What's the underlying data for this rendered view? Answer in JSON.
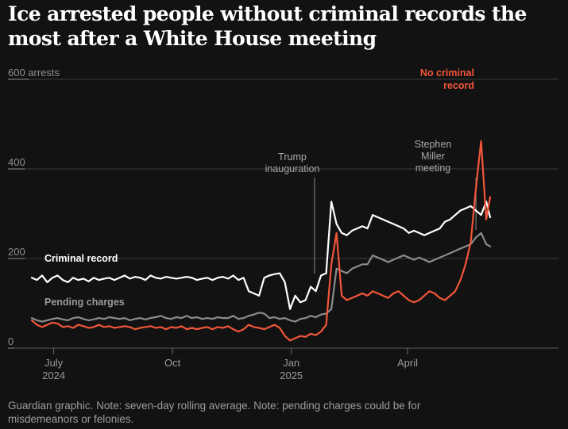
{
  "title": "Ice arrested people without criminal records the most after a White House meeting",
  "footer": "Guardian graphic. Note: seven-day rolling average. Note: pending charges could be for misdemeanors or felonies.",
  "colors": {
    "background": "#121212",
    "criminal_record": "#ffffff",
    "pending_charges": "#8c8c8c",
    "no_criminal_record": "#f2563a",
    "gridline": "#3a3a3a",
    "annotation": "#a8a8a8"
  },
  "chart_data": {
    "type": "line",
    "title": "Ice arrested people without criminal records the most after a White House meeting",
    "ylabel": "arrests",
    "ylim": [
      0,
      600
    ],
    "yticks": [
      {
        "value": 0,
        "label": "0"
      },
      {
        "value": 200,
        "label": "200"
      },
      {
        "value": 400,
        "label": "400"
      },
      {
        "value": 600,
        "label": "600"
      }
    ],
    "y_unit_label": "arrests",
    "xlim": [
      0,
      355
    ],
    "xticks": [
      {
        "x": 17,
        "label": "July",
        "sublabel": "2024"
      },
      {
        "x": 109,
        "label": "Oct",
        "sublabel": ""
      },
      {
        "x": 201,
        "label": "Jan",
        "sublabel": "2025"
      },
      {
        "x": 291,
        "label": "April",
        "sublabel": ""
      }
    ],
    "x_unit": "days since 2024-06-14",
    "grid": true,
    "annotations": [
      {
        "id": "trump",
        "x": 219,
        "lines": [
          "Trump",
          "inauguration"
        ]
      },
      {
        "id": "miller",
        "x": 344,
        "lines": [
          "Stephen",
          "Miller",
          "meeting"
        ]
      }
    ],
    "series": [
      {
        "name": "Criminal record",
        "label": "Criminal record",
        "color": "#ffffff",
        "x": [
          0,
          4,
          8,
          12,
          16,
          20,
          24,
          28,
          32,
          36,
          40,
          44,
          48,
          52,
          56,
          60,
          64,
          68,
          72,
          76,
          80,
          84,
          88,
          92,
          96,
          100,
          104,
          108,
          112,
          116,
          120,
          124,
          128,
          132,
          136,
          140,
          144,
          148,
          152,
          156,
          160,
          164,
          168,
          172,
          176,
          180,
          184,
          188,
          192,
          196,
          200,
          204,
          208,
          212,
          216,
          220,
          224,
          228,
          232,
          236,
          240,
          244,
          248,
          252,
          256,
          260,
          264,
          268,
          272,
          276,
          280,
          284,
          288,
          292,
          296,
          300,
          304,
          308,
          312,
          316,
          320,
          324,
          328,
          332,
          336,
          340,
          344,
          348,
          352,
          355
        ],
        "values": [
          150,
          145,
          155,
          140,
          150,
          155,
          145,
          140,
          150,
          145,
          148,
          142,
          150,
          145,
          148,
          150,
          145,
          150,
          155,
          148,
          152,
          150,
          145,
          155,
          150,
          148,
          152,
          150,
          148,
          150,
          152,
          150,
          145,
          148,
          150,
          145,
          150,
          152,
          148,
          155,
          145,
          150,
          120,
          115,
          110,
          150,
          155,
          158,
          160,
          140,
          80,
          110,
          95,
          100,
          130,
          120,
          155,
          160,
          320,
          270,
          250,
          245,
          255,
          260,
          265,
          260,
          290,
          285,
          280,
          275,
          270,
          265,
          260,
          250,
          255,
          250,
          245,
          250,
          255,
          260,
          275,
          280,
          290,
          300,
          305,
          310,
          300,
          290,
          320,
          285
        ]
      },
      {
        "name": "Pending charges",
        "label": "Pending charges",
        "color": "#8c8c8c",
        "x": [
          0,
          4,
          8,
          12,
          16,
          20,
          24,
          28,
          32,
          36,
          40,
          44,
          48,
          52,
          56,
          60,
          64,
          68,
          72,
          76,
          80,
          84,
          88,
          92,
          96,
          100,
          104,
          108,
          112,
          116,
          120,
          124,
          128,
          132,
          136,
          140,
          144,
          148,
          152,
          156,
          160,
          164,
          168,
          172,
          176,
          180,
          184,
          188,
          192,
          196,
          200,
          204,
          208,
          212,
          216,
          220,
          224,
          228,
          232,
          236,
          240,
          244,
          248,
          252,
          256,
          260,
          264,
          268,
          272,
          276,
          280,
          284,
          288,
          292,
          296,
          300,
          304,
          308,
          312,
          316,
          320,
          324,
          328,
          332,
          336,
          340,
          344,
          348,
          352,
          355
        ],
        "values": [
          60,
          55,
          52,
          55,
          58,
          60,
          57,
          55,
          60,
          62,
          58,
          55,
          57,
          60,
          58,
          62,
          60,
          58,
          60,
          55,
          58,
          60,
          57,
          60,
          62,
          65,
          60,
          58,
          62,
          60,
          65,
          60,
          62,
          58,
          60,
          58,
          62,
          60,
          60,
          65,
          58,
          60,
          65,
          68,
          72,
          70,
          60,
          62,
          58,
          60,
          55,
          52,
          58,
          60,
          65,
          62,
          68,
          70,
          80,
          170,
          165,
          160,
          170,
          175,
          180,
          180,
          200,
          195,
          190,
          185,
          190,
          195,
          200,
          195,
          190,
          195,
          190,
          185,
          190,
          195,
          200,
          205,
          210,
          215,
          220,
          225,
          240,
          250,
          225,
          220
        ]
      },
      {
        "name": "No criminal record",
        "label": "No criminal record",
        "color": "#f2563a",
        "x": [
          0,
          4,
          8,
          12,
          16,
          20,
          24,
          28,
          32,
          36,
          40,
          44,
          48,
          52,
          56,
          60,
          64,
          68,
          72,
          76,
          80,
          84,
          88,
          92,
          96,
          100,
          104,
          108,
          112,
          116,
          120,
          124,
          128,
          132,
          136,
          140,
          144,
          148,
          152,
          156,
          160,
          164,
          168,
          172,
          176,
          180,
          184,
          188,
          192,
          196,
          200,
          204,
          208,
          212,
          216,
          220,
          224,
          228,
          232,
          236,
          240,
          244,
          248,
          252,
          256,
          260,
          264,
          268,
          272,
          276,
          280,
          284,
          288,
          292,
          296,
          300,
          304,
          308,
          312,
          316,
          320,
          324,
          328,
          332,
          336,
          340,
          344,
          348,
          352,
          355
        ],
        "values": [
          55,
          45,
          40,
          45,
          50,
          48,
          40,
          42,
          38,
          45,
          42,
          38,
          40,
          45,
          40,
          42,
          38,
          40,
          42,
          40,
          35,
          38,
          40,
          42,
          38,
          40,
          35,
          40,
          38,
          42,
          35,
          38,
          35,
          38,
          40,
          35,
          40,
          38,
          42,
          35,
          30,
          35,
          45,
          40,
          38,
          35,
          40,
          45,
          38,
          20,
          10,
          15,
          20,
          18,
          25,
          22,
          30,
          45,
          180,
          250,
          110,
          100,
          105,
          110,
          115,
          110,
          120,
          115,
          110,
          105,
          115,
          120,
          110,
          100,
          95,
          100,
          110,
          120,
          115,
          105,
          100,
          110,
          120,
          145,
          180,
          230,
          350,
          455,
          280,
          330
        ]
      }
    ]
  }
}
